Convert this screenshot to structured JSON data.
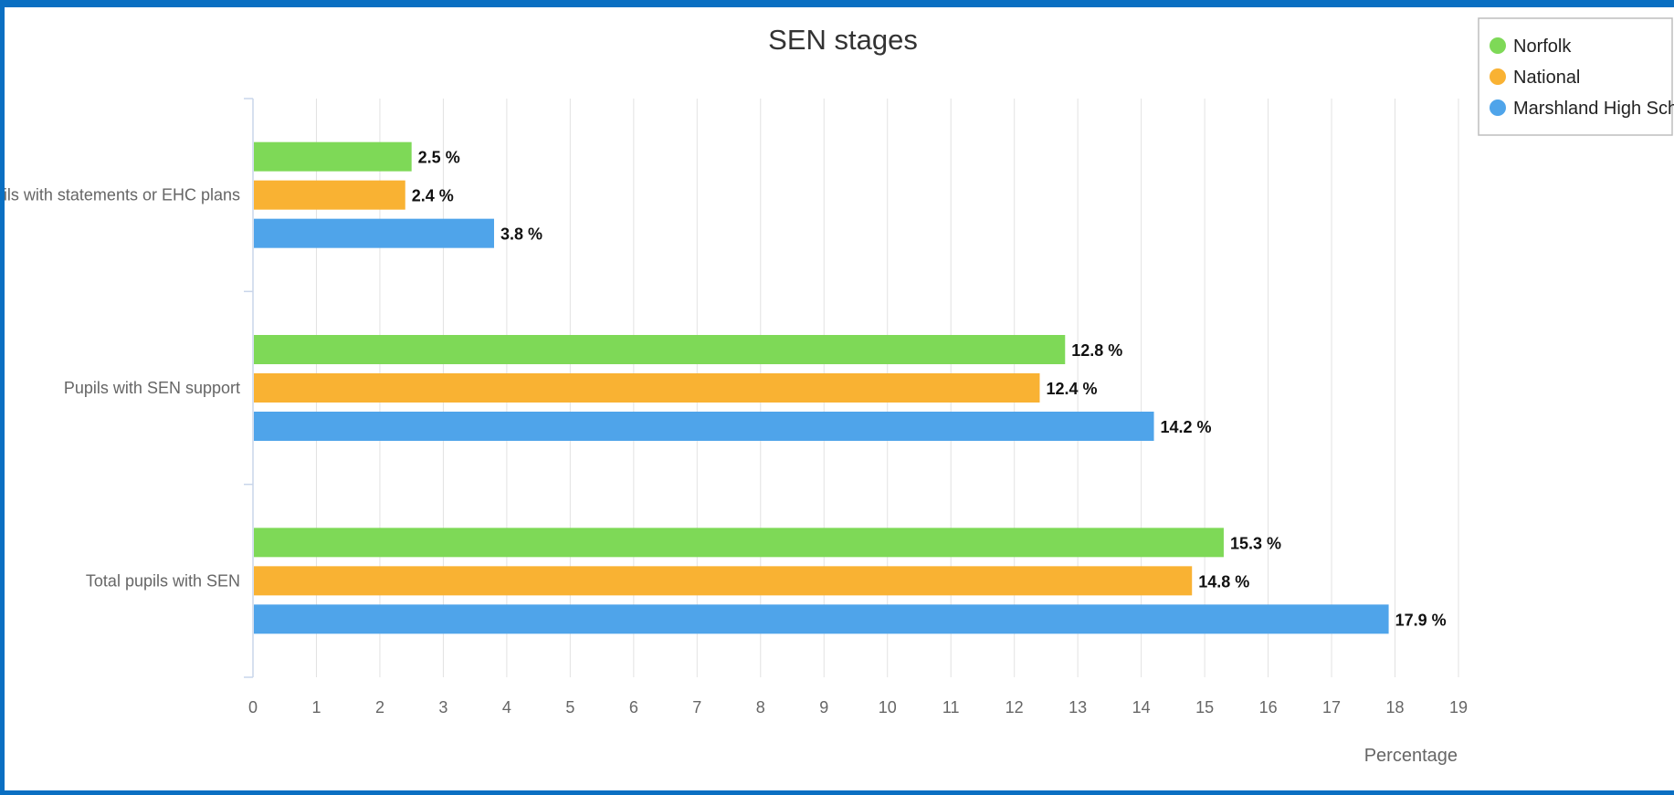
{
  "chart_data": {
    "type": "bar",
    "orientation": "horizontal",
    "title": "SEN stages",
    "xlabel": "Percentage",
    "ylabel": "",
    "categories": [
      "Pupils with statements or EHC plans",
      "Pupils with SEN support",
      "Total pupils with SEN"
    ],
    "series": [
      {
        "name": "Norfolk",
        "color": "#7ed957",
        "values": [
          2.5,
          12.8,
          15.3
        ],
        "labels": [
          "2.5 %",
          "12.8 %",
          "15.3 %"
        ]
      },
      {
        "name": "National",
        "color": "#f9b233",
        "values": [
          2.4,
          12.4,
          14.8
        ],
        "labels": [
          "2.4 %",
          "12.4 %",
          "14.8 %"
        ]
      },
      {
        "name": "Marshland High School",
        "color": "#4fa4ea",
        "values": [
          3.8,
          14.2,
          17.9
        ],
        "labels": [
          "3.8 %",
          "14.2 %",
          "17.9 %"
        ]
      }
    ],
    "xlim": [
      0,
      19
    ],
    "xticks": [
      "0",
      "1",
      "2",
      "3",
      "4",
      "5",
      "6",
      "7",
      "8",
      "9",
      "10",
      "11",
      "12",
      "13",
      "14",
      "15",
      "16",
      "17",
      "18",
      "19"
    ],
    "grid": true,
    "legend_position": "top-right"
  }
}
